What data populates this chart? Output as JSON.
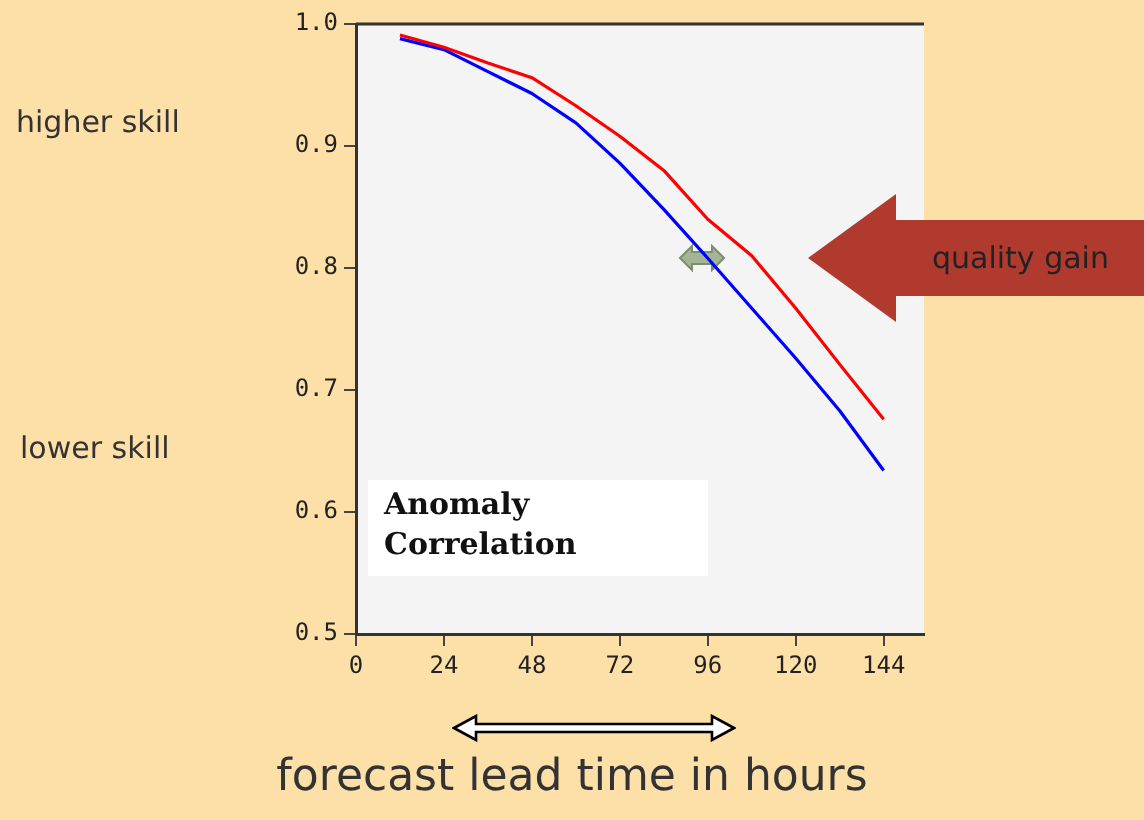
{
  "chart_data": {
    "type": "line",
    "xlabel": "forecast lead time in hours",
    "annotations": [
      "higher skill",
      "lower skill",
      "quality gain",
      "Anomaly Correlation"
    ],
    "x": [
      12,
      24,
      36,
      48,
      60,
      72,
      84,
      96,
      108,
      120,
      132,
      144
    ],
    "series": [
      {
        "color": "#ff0000",
        "values": [
          0.991,
          0.981,
          0.968,
          0.956,
          0.933,
          0.908,
          0.88,
          0.84,
          0.81,
          0.767,
          0.721,
          0.676
        ]
      },
      {
        "color": "#0000ff",
        "values": [
          0.988,
          0.979,
          0.961,
          0.943,
          0.919,
          0.886,
          0.848,
          0.808,
          0.767,
          0.726,
          0.683,
          0.634
        ]
      }
    ],
    "xlim": [
      0,
      155
    ],
    "xticks": [
      0,
      24,
      48,
      72,
      96,
      120,
      144
    ],
    "ylim": [
      0.5,
      1.0
    ],
    "yticks": [
      {
        "value": 0.5,
        "label": "0.5"
      },
      {
        "value": 0.6,
        "label": "0.6"
      },
      {
        "value": 0.7,
        "label": "0.7"
      },
      {
        "value": 0.8,
        "label": "0.8"
      },
      {
        "value": 0.9,
        "label": "0.9"
      },
      {
        "value": 1.0,
        "label": "1.0"
      }
    ],
    "grid": false,
    "legend": false,
    "marker": "none",
    "line_style": "solid"
  }
}
